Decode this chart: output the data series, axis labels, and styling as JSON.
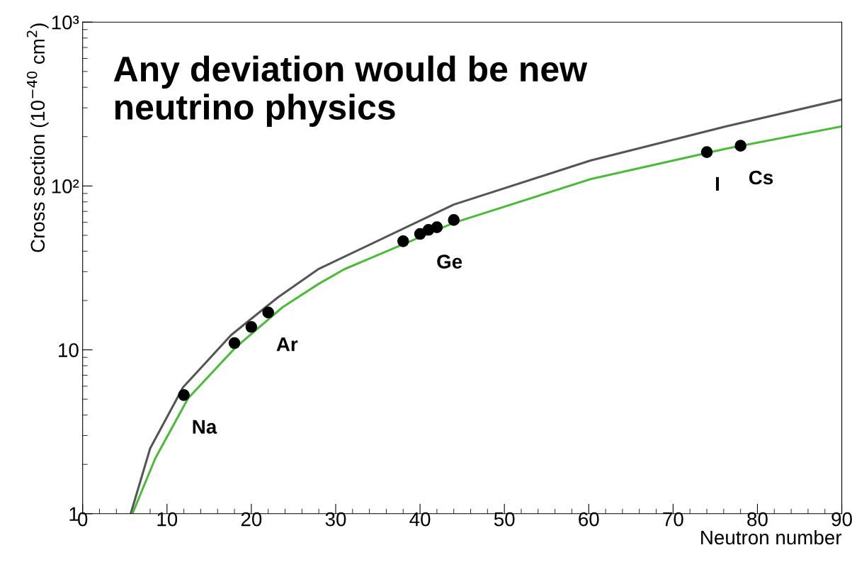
{
  "chart_data": {
    "type": "line",
    "title": "Any deviation would be new\nneutrino physics",
    "xlabel": "Neutron number",
    "ylabel": "Cross section (10$^{−40}$ cm$^{2}$)",
    "log": "y",
    "grid": false,
    "marker": "none",
    "line_style": "solid",
    "xlim": [
      0,
      90
    ],
    "xticks": [
      0,
      10,
      20,
      30,
      40,
      50,
      60,
      70,
      80,
      90
    ],
    "ylim": [
      1,
      1000
    ],
    "yticks": [
      1,
      10,
      {
        "value": 100,
        "label": "10²"
      },
      {
        "value": 1000,
        "label": "10³"
      }
    ],
    "series": [
      {
        "color": "#555555",
        "x": [
          5.7,
          8.0,
          11.9,
          17.6,
          23.1,
          28,
          44,
          60.2,
          76.3,
          90
        ],
        "values": [
          1,
          2.5,
          5.9,
          12.3,
          20.8,
          31.2,
          77,
          143,
          231,
          337
        ]
      },
      {
        "color": "#4cbb3a",
        "x": [
          5.9,
          8.6,
          12.5,
          18.1,
          23.7,
          28,
          31,
          44,
          60.2,
          76.3,
          90
        ],
        "values": [
          1,
          2.17,
          5.06,
          10.3,
          18.2,
          25.3,
          31,
          59.6,
          110,
          169,
          231
        ]
      },
      {
        "type": "scatter",
        "marker": "circle",
        "color": "#000000",
        "x": [
          12,
          18,
          20,
          22,
          38,
          40,
          41,
          42,
          44,
          74,
          78
        ],
        "values": [
          5.3,
          11,
          13.8,
          16.9,
          46,
          51,
          54,
          56,
          62,
          161,
          176
        ]
      }
    ],
    "annotations": [
      {
        "text": "Na",
        "x": 12,
        "y": 5.3
      },
      {
        "text": "Ar",
        "x": 22,
        "y": 16.9
      },
      {
        "text": "Ge",
        "x": 41,
        "y": 54
      },
      {
        "text": "I",
        "x": 74,
        "y": 161
      },
      {
        "text": "Cs",
        "x": 78,
        "y": 176
      }
    ]
  }
}
